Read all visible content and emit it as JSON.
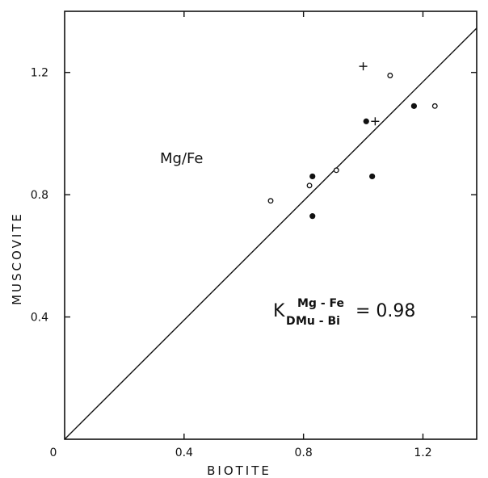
{
  "chart_data": {
    "type": "scatter",
    "title": "",
    "xlabel": "BIOTITE",
    "ylabel": "MUSCOVITE",
    "xlim": [
      0,
      1.38
    ],
    "ylim": [
      0,
      1.4
    ],
    "origin_label": "0",
    "x_ticks": [
      {
        "value": 0.4,
        "label": "0.4"
      },
      {
        "value": 0.8,
        "label": "0.8"
      },
      {
        "value": 1.2,
        "label": "1.2"
      }
    ],
    "y_ticks": [
      {
        "value": 0.4,
        "label": "0.4"
      },
      {
        "value": 0.8,
        "label": "0.8"
      },
      {
        "value": 1.2,
        "label": "1.2"
      }
    ],
    "grid": false,
    "reference_line": {
      "x": [
        0,
        1.38
      ],
      "y": [
        0,
        1.345
      ]
    },
    "annotation": "Mg/Fe",
    "equation": {
      "k": "K",
      "d": "D",
      "super": "Mg - Fe",
      "sub": "Mu - Bi",
      "rhs": "= 0.98"
    },
    "series": [
      {
        "marker": "filled-circle",
        "points": [
          [
            0.83,
            0.86
          ],
          [
            0.83,
            0.73
          ],
          [
            1.01,
            1.04
          ],
          [
            1.03,
            0.86
          ],
          [
            1.17,
            1.09
          ]
        ]
      },
      {
        "marker": "open-circle",
        "points": [
          [
            0.69,
            0.78
          ],
          [
            0.82,
            0.83
          ],
          [
            0.91,
            0.88
          ],
          [
            1.09,
            1.19
          ],
          [
            1.24,
            1.09
          ]
        ]
      },
      {
        "marker": "plus",
        "points": [
          [
            1.0,
            1.22
          ],
          [
            1.04,
            1.04
          ]
        ]
      }
    ]
  }
}
